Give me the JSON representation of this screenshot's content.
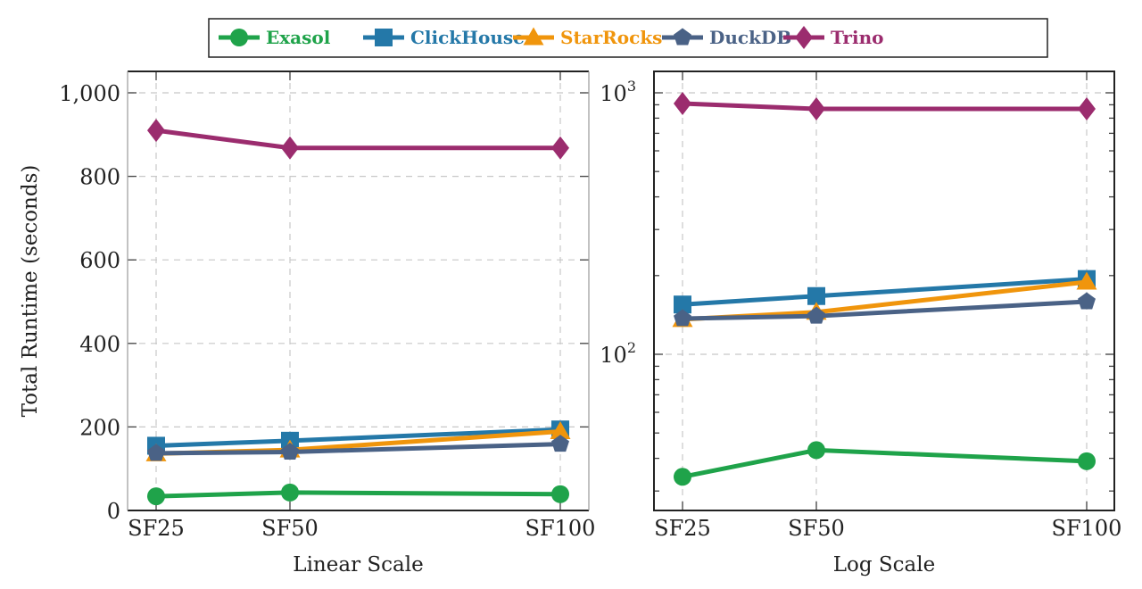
{
  "chart_data": [
    {
      "type": "line",
      "title": "",
      "xlabel": "Linear Scale",
      "ylabel": "Total Runtime (seconds)",
      "yscale": "linear",
      "ylim": [
        0,
        1050
      ],
      "yticks": [
        0,
        200,
        400,
        600,
        800,
        1000
      ],
      "ytick_labels": [
        "0",
        "200",
        "400",
        "600",
        "800",
        "1,000"
      ],
      "x": [
        "SF25",
        "SF50",
        "SF100"
      ],
      "x_numeric": [
        25,
        50,
        100
      ],
      "grid": true,
      "series": [
        {
          "name": "Exasol",
          "values": [
            34,
            43,
            39
          ]
        },
        {
          "name": "ClickHouse",
          "values": [
            155,
            167,
            194
          ]
        },
        {
          "name": "StarRocks",
          "values": [
            136,
            145,
            189
          ]
        },
        {
          "name": "DuckDB",
          "values": [
            137,
            140,
            159
          ]
        },
        {
          "name": "Trino",
          "values": [
            910,
            868,
            868
          ]
        }
      ]
    },
    {
      "type": "line",
      "title": "",
      "xlabel": "Log Scale",
      "ylabel": "",
      "yscale": "log",
      "ylim": [
        25,
        1200
      ],
      "yticks": [
        100,
        1000
      ],
      "ytick_labels": [
        "10",
        "10"
      ],
      "ytick_exponents": [
        "2",
        "3"
      ],
      "x": [
        "SF25",
        "SF50",
        "SF100"
      ],
      "x_numeric": [
        25,
        50,
        100
      ],
      "grid": true,
      "series": [
        {
          "name": "Exasol",
          "values": [
            34,
            43,
            39
          ]
        },
        {
          "name": "ClickHouse",
          "values": [
            155,
            167,
            194
          ]
        },
        {
          "name": "StarRocks",
          "values": [
            136,
            145,
            189
          ]
        },
        {
          "name": "DuckDB",
          "values": [
            137,
            140,
            159
          ]
        },
        {
          "name": "Trino",
          "values": [
            910,
            868,
            868
          ]
        }
      ]
    }
  ],
  "legend": {
    "placement": "top-center",
    "entries": [
      {
        "name": "Exasol",
        "color": "#1fa34a",
        "marker": "circle"
      },
      {
        "name": "ClickHouse",
        "color": "#2478a8",
        "marker": "square"
      },
      {
        "name": "StarRocks",
        "color": "#f0950c",
        "marker": "triangle"
      },
      {
        "name": "DuckDB",
        "color": "#4a6286",
        "marker": "pentagon"
      },
      {
        "name": "Trino",
        "color": "#9b2c6e",
        "marker": "diamond"
      }
    ]
  }
}
